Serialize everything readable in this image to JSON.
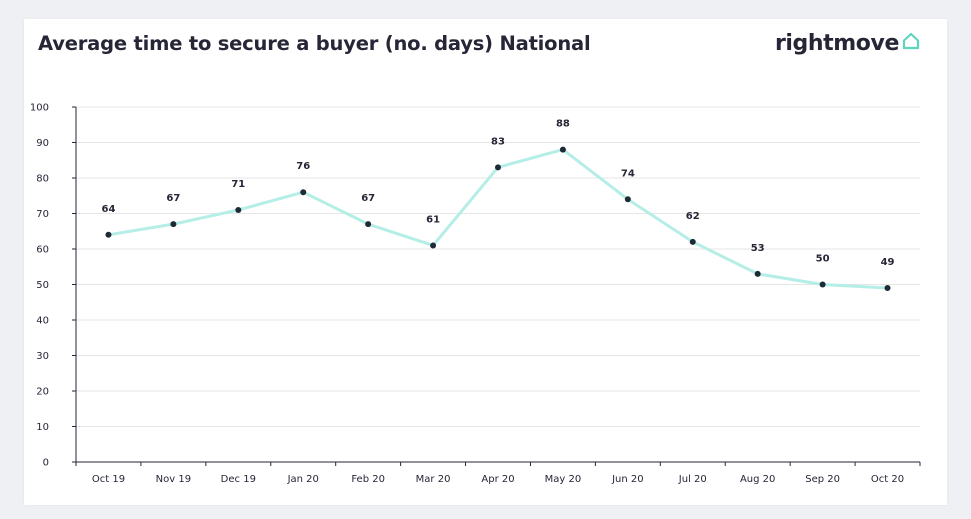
{
  "header": {
    "title": "Average time to secure a buyer (no. days) National"
  },
  "brand": {
    "text": "rightmove",
    "icon": "house-outline-icon",
    "icon_color": "#5fd4bf"
  },
  "colors": {
    "line": "#b4eee6",
    "point": "#1e2b36",
    "grid": "#e6e6e6",
    "axis": "#262637",
    "text": "#262637"
  },
  "chart_data": {
    "type": "line",
    "title": "Average time to secure a buyer (no. days) National",
    "xlabel": "",
    "ylabel": "",
    "categories": [
      "Oct 19",
      "Nov 19",
      "Dec 19",
      "Jan 20",
      "Feb 20",
      "Mar 20",
      "Apr 20",
      "May 20",
      "Jun 20",
      "Jul 20",
      "Aug 20",
      "Sep 20",
      "Oct 20"
    ],
    "series": [
      {
        "values": [
          64,
          67,
          71,
          76,
          67,
          61,
          83,
          88,
          74,
          62,
          53,
          50,
          49
        ]
      }
    ],
    "ylim": [
      0,
      100
    ],
    "yticks": [
      0,
      10,
      20,
      30,
      40,
      50,
      60,
      70,
      80,
      90,
      100
    ],
    "grid": true,
    "legend": "none",
    "data_labels": true
  }
}
